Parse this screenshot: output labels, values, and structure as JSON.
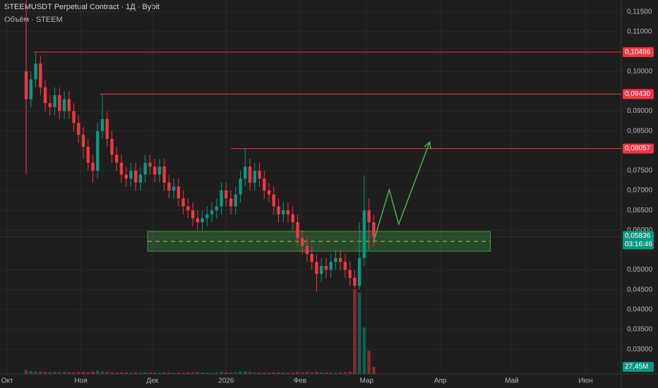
{
  "chart_data": {
    "type": "candlestick",
    "title": "STEEMUSDT Perpetual Contract · 1Д · Bybit",
    "subtitle": "Объём · STEEM",
    "up_color": "#089981",
    "down_color": "#f23645",
    "x": [
      8,
      10,
      12,
      14,
      16,
      18,
      20,
      22,
      24,
      26,
      28,
      30,
      32,
      34,
      36,
      38,
      40,
      42,
      44,
      46,
      48,
      50,
      52,
      54,
      56,
      58,
      60,
      62,
      64,
      66,
      68,
      70,
      72,
      74,
      76,
      78,
      80,
      82,
      84,
      86,
      88,
      90,
      92,
      94,
      96,
      98,
      100,
      102,
      104,
      106,
      108,
      110,
      112,
      114,
      116,
      118,
      120,
      122,
      124,
      126,
      128,
      130,
      132,
      134,
      136,
      138,
      140,
      142,
      144,
      146,
      148,
      150,
      152,
      154
    ],
    "open": [
      0.1,
      0.093,
      0.098,
      0.102,
      0.096,
      0.092,
      0.091,
      0.094,
      0.09,
      0.093,
      0.09,
      0.087,
      0.084,
      0.081,
      0.077,
      0.075,
      0.085,
      0.088,
      0.083,
      0.079,
      0.077,
      0.074,
      0.073,
      0.075,
      0.072,
      0.074,
      0.077,
      0.076,
      0.074,
      0.076,
      0.072,
      0.07,
      0.071,
      0.068,
      0.066,
      0.065,
      0.063,
      0.062,
      0.063,
      0.064,
      0.065,
      0.066,
      0.07,
      0.068,
      0.066,
      0.069,
      0.073,
      0.076,
      0.072,
      0.075,
      0.073,
      0.07,
      0.069,
      0.066,
      0.064,
      0.065,
      0.064,
      0.062,
      0.058,
      0.056,
      0.054,
      0.052,
      0.049,
      0.051,
      0.05,
      0.052,
      0.053,
      0.052,
      0.05,
      0.048,
      0.046,
      0.053,
      0.065,
      0.062
    ],
    "high": [
      0.118,
      0.1,
      0.10486,
      0.104,
      0.098,
      0.094,
      0.096,
      0.096,
      0.095,
      0.095,
      0.092,
      0.089,
      0.086,
      0.083,
      0.079,
      0.087,
      0.0943,
      0.09,
      0.085,
      0.081,
      0.079,
      0.076,
      0.077,
      0.077,
      0.076,
      0.079,
      0.079,
      0.078,
      0.078,
      0.078,
      0.074,
      0.073,
      0.073,
      0.07,
      0.068,
      0.067,
      0.065,
      0.065,
      0.066,
      0.067,
      0.068,
      0.072,
      0.072,
      0.07,
      0.071,
      0.075,
      0.08057,
      0.078,
      0.077,
      0.077,
      0.075,
      0.072,
      0.071,
      0.068,
      0.067,
      0.067,
      0.066,
      0.064,
      0.06,
      0.058,
      0.056,
      0.054,
      0.053,
      0.053,
      0.054,
      0.055,
      0.055,
      0.054,
      0.052,
      0.05,
      0.062,
      0.0738,
      0.068,
      0.064
    ],
    "low": [
      0.074,
      0.091,
      0.096,
      0.094,
      0.09,
      0.089,
      0.089,
      0.088,
      0.088,
      0.088,
      0.085,
      0.082,
      0.078,
      0.075,
      0.072,
      0.073,
      0.083,
      0.081,
      0.077,
      0.075,
      0.072,
      0.071,
      0.071,
      0.07,
      0.07,
      0.072,
      0.074,
      0.072,
      0.072,
      0.07,
      0.068,
      0.068,
      0.066,
      0.064,
      0.063,
      0.061,
      0.06,
      0.06,
      0.061,
      0.062,
      0.063,
      0.064,
      0.066,
      0.064,
      0.064,
      0.067,
      0.071,
      0.07,
      0.07,
      0.071,
      0.068,
      0.067,
      0.064,
      0.062,
      0.062,
      0.062,
      0.06,
      0.056,
      0.054,
      0.052,
      0.05,
      0.0445,
      0.047,
      0.048,
      0.048,
      0.05,
      0.05,
      0.048,
      0.046,
      0.0455,
      0.045,
      0.051,
      0.055,
      0.056
    ],
    "close": [
      0.093,
      0.098,
      0.102,
      0.096,
      0.092,
      0.091,
      0.094,
      0.09,
      0.093,
      0.09,
      0.087,
      0.084,
      0.081,
      0.077,
      0.075,
      0.085,
      0.088,
      0.083,
      0.079,
      0.077,
      0.074,
      0.073,
      0.075,
      0.072,
      0.074,
      0.077,
      0.076,
      0.074,
      0.076,
      0.072,
      0.07,
      0.071,
      0.068,
      0.066,
      0.065,
      0.063,
      0.062,
      0.063,
      0.064,
      0.065,
      0.066,
      0.07,
      0.068,
      0.066,
      0.069,
      0.073,
      0.076,
      0.072,
      0.075,
      0.073,
      0.07,
      0.069,
      0.066,
      0.064,
      0.065,
      0.064,
      0.062,
      0.058,
      0.056,
      0.054,
      0.052,
      0.049,
      0.051,
      0.05,
      0.052,
      0.053,
      0.052,
      0.05,
      0.048,
      0.046,
      0.053,
      0.065,
      0.062,
      0.05836
    ],
    "volume": {
      "values": [
        15,
        12,
        10,
        9,
        8,
        7,
        8,
        6,
        7,
        6,
        6,
        7,
        8,
        6,
        9,
        12,
        10,
        7,
        6,
        5,
        5,
        6,
        5,
        6,
        5,
        6,
        5,
        5,
        5,
        6,
        5,
        4,
        5,
        5,
        6,
        5,
        7,
        5,
        5,
        4,
        5,
        8,
        6,
        5,
        6,
        9,
        10,
        7,
        5,
        5,
        5,
        4,
        5,
        6,
        5,
        4,
        5,
        8,
        6,
        7,
        6,
        9,
        6,
        5,
        5,
        5,
        6,
        7,
        9,
        330,
        316,
        180,
        90,
        27.45
      ],
      "ylim": [
        0,
        1450
      ],
      "label": "27,45M"
    },
    "xlim": [
      -3,
      258
    ],
    "xticks": [
      {
        "value": 0,
        "label": "Окт"
      },
      {
        "value": 31,
        "label": "Ноя"
      },
      {
        "value": 61,
        "label": "Дек"
      },
      {
        "value": 92,
        "label": "2026"
      },
      {
        "value": 123,
        "label": "Фев"
      },
      {
        "value": 151,
        "label": "Мар"
      },
      {
        "value": 182,
        "label": "Апр"
      },
      {
        "value": 212,
        "label": "Май"
      },
      {
        "value": 243,
        "label": "Июн"
      }
    ],
    "ylim": [
      0.0238,
      0.118
    ],
    "yticks": [
      {
        "value": 0.115,
        "label": "0,11500"
      },
      {
        "value": 0.11,
        "label": "0,11000"
      },
      {
        "value": 0.1,
        "label": "0,10000"
      },
      {
        "value": 0.09,
        "label": "0,09000"
      },
      {
        "value": 0.085,
        "label": "0,08500"
      },
      {
        "value": 0.075,
        "label": "0,07500"
      },
      {
        "value": 0.07,
        "label": "0,07000"
      },
      {
        "value": 0.065,
        "label": "0,06500"
      },
      {
        "value": 0.06,
        "label": "0,06000"
      },
      {
        "value": 0.05,
        "label": "0,05000"
      },
      {
        "value": 0.045,
        "label": "0,04500"
      },
      {
        "value": 0.04,
        "label": "0,04000"
      },
      {
        "value": 0.035,
        "label": "0,03500"
      },
      {
        "value": 0.03,
        "label": "0,03000"
      }
    ],
    "grid": true,
    "levels": [
      {
        "value": 0.10486,
        "label": "0,10486",
        "start": 11
      },
      {
        "value": 0.0943,
        "label": "0,09430",
        "start": 39
      },
      {
        "value": 0.08057,
        "label": "0,08057",
        "start": 94
      }
    ],
    "level_color": "#f23645",
    "current_price": {
      "value": 0.05836,
      "label": "0,05836",
      "countdown": "03:16:46"
    },
    "zone": {
      "x": [
        59,
        203
      ],
      "y": [
        0.05471,
        0.05969
      ],
      "mid": 0.0572,
      "color": "#4caf50"
    },
    "arrow": {
      "x": [
        154,
        160.5,
        164.5,
        177.5
      ],
      "y": [
        0.0572,
        0.0702,
        0.0615,
        0.0822
      ],
      "color": "#4caf50"
    }
  }
}
